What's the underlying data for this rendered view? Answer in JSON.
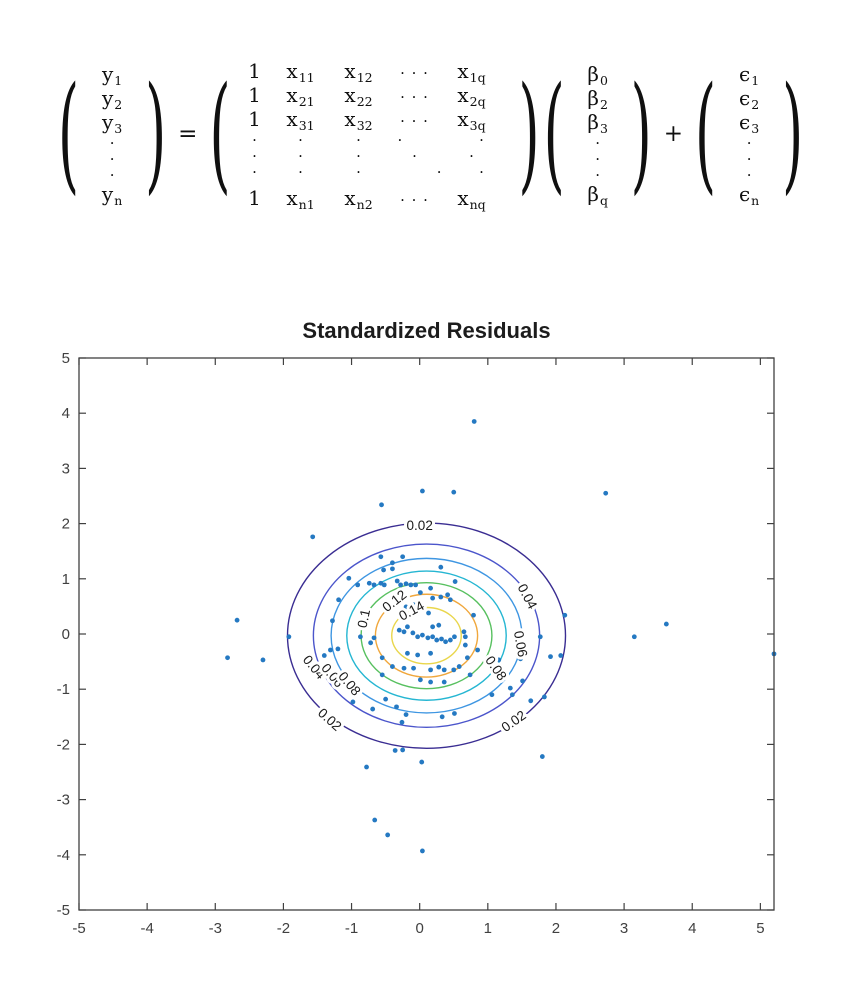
{
  "page": {
    "background": "#ffffff"
  },
  "equation": {
    "equals": "=",
    "plus": "+",
    "vectors": {
      "y": {
        "rows": [
          {
            "b": "y",
            "s": "1"
          },
          {
            "b": "y",
            "s": "2"
          },
          {
            "b": "y",
            "s": "3"
          },
          {
            "dots": true
          },
          {
            "dots": true
          },
          {
            "dots": true
          },
          {
            "b": "y",
            "s": "n"
          }
        ]
      },
      "beta": {
        "rows": [
          {
            "b": "β",
            "s": "0"
          },
          {
            "b": "β",
            "s": "2"
          },
          {
            "b": "β",
            "s": "3"
          },
          {
            "dots": true
          },
          {
            "dots": true
          },
          {
            "dots": true
          },
          {
            "b": "β",
            "s": "q"
          }
        ]
      },
      "epsilon": {
        "rows": [
          {
            "b": "ϵ",
            "s": "1"
          },
          {
            "b": "ϵ",
            "s": "2"
          },
          {
            "b": "ϵ",
            "s": "3"
          },
          {
            "dots": true
          },
          {
            "dots": true
          },
          {
            "dots": true
          },
          {
            "b": "ϵ",
            "s": "n"
          }
        ]
      }
    },
    "matrix": {
      "rows": [
        {
          "cells": [
            {
              "t": "1"
            },
            {
              "b": "x",
              "s": "11"
            },
            {
              "b": "x",
              "s": "12"
            },
            {
              "t": "· · ·"
            },
            {
              "b": "x",
              "s": "1q"
            }
          ]
        },
        {
          "cells": [
            {
              "t": "1"
            },
            {
              "b": "x",
              "s": "21"
            },
            {
              "b": "x",
              "s": "22"
            },
            {
              "t": "· · ·"
            },
            {
              "b": "x",
              "s": "2q"
            }
          ]
        },
        {
          "cells": [
            {
              "t": "1"
            },
            {
              "b": "x",
              "s": "31"
            },
            {
              "b": "x",
              "s": "32"
            },
            {
              "t": "· · ·"
            },
            {
              "b": "x",
              "s": "3q"
            }
          ]
        },
        {
          "dots": true,
          "cells": [
            {
              "t": "·"
            },
            {
              "t": "·"
            },
            {
              "t": "·"
            },
            {
              "t": "·",
              "shift": "l"
            },
            {
              "t": "·"
            }
          ]
        },
        {
          "dots": true,
          "cells": [
            {
              "t": "·"
            },
            {
              "t": "·"
            },
            {
              "t": "·"
            },
            {
              "t": "·",
              "shift": "c"
            },
            {
              "t": "·"
            }
          ]
        },
        {
          "dots": true,
          "cells": [
            {
              "t": "·"
            },
            {
              "t": "·"
            },
            {
              "t": "·"
            },
            {
              "t": "·",
              "shift": "r"
            },
            {
              "t": "·"
            }
          ]
        },
        {
          "last": true,
          "cells": [
            {
              "t": "1"
            },
            {
              "b": "x",
              "s": "n1"
            },
            {
              "b": "x",
              "s": "n2"
            },
            {
              "t": "· · ·"
            },
            {
              "b": "x",
              "s": "nq"
            }
          ]
        }
      ]
    }
  },
  "chart_data": {
    "type": "scatter",
    "title": "Standardized Residuals",
    "xlabel": "",
    "ylabel": "",
    "xlim": [
      -5,
      5.2
    ],
    "ylim": [
      -5,
      5
    ],
    "xticks": [
      -5,
      -4,
      -3,
      -2,
      -1,
      0,
      1,
      2,
      3,
      4,
      5
    ],
    "yticks": [
      -5,
      -4,
      -3,
      -2,
      -1,
      0,
      1,
      2,
      3,
      4,
      5
    ],
    "grid": false,
    "legend": null,
    "point_color": "#2579c2",
    "axis_color": "#404040",
    "contours": {
      "center": [
        0.1,
        -0.03
      ],
      "levels": [
        {
          "value": 0.02,
          "radius": 2.04,
          "color": "#3a2d92"
        },
        {
          "value": 0.04,
          "radius": 1.66,
          "color": "#4b55cb"
        },
        {
          "value": 0.06,
          "radius": 1.4,
          "color": "#3e96e2"
        },
        {
          "value": 0.08,
          "radius": 1.17,
          "color": "#25b6d2"
        },
        {
          "value": 0.1,
          "radius": 0.96,
          "color": "#57c05f"
        },
        {
          "value": 0.12,
          "radius": 0.75,
          "color": "#f0a73c"
        },
        {
          "value": 0.14,
          "radius": 0.51,
          "color": "#e9d64b"
        }
      ],
      "labels": [
        {
          "text": "0.02",
          "x": 0.0,
          "y": 1.97,
          "rot": 0
        },
        {
          "text": "0.04",
          "x": 1.58,
          "y": 0.68,
          "rot": 62
        },
        {
          "text": "0.06",
          "x": 1.48,
          "y": -0.18,
          "rot": 80
        },
        {
          "text": "0.08",
          "x": 1.12,
          "y": -0.62,
          "rot": 55
        },
        {
          "text": "0.02",
          "x": 1.38,
          "y": -1.58,
          "rot": -35
        },
        {
          "text": "0.02",
          "x": -1.32,
          "y": -1.55,
          "rot": 42
        },
        {
          "text": "0.04",
          "x": -1.55,
          "y": -0.6,
          "rot": 50
        },
        {
          "text": "0.06",
          "x": -1.28,
          "y": -0.75,
          "rot": 50
        },
        {
          "text": "0.08",
          "x": -1.03,
          "y": -0.9,
          "rot": 50
        },
        {
          "text": "0.1",
          "x": -0.82,
          "y": 0.28,
          "rot": -78
        },
        {
          "text": "0.12",
          "x": -0.37,
          "y": 0.6,
          "rot": -38
        },
        {
          "text": "0.14",
          "x": -0.12,
          "y": 0.42,
          "rot": -28
        }
      ]
    },
    "points": [
      [
        0.8,
        3.85
      ],
      [
        0.5,
        2.57
      ],
      [
        0.04,
        2.59
      ],
      [
        -0.56,
        2.34
      ],
      [
        2.73,
        2.55
      ],
      [
        -1.57,
        1.76
      ],
      [
        -2.68,
        0.25
      ],
      [
        -2.82,
        -0.43
      ],
      [
        -2.3,
        -0.47
      ],
      [
        3.15,
        -0.05
      ],
      [
        3.62,
        0.18
      ],
      [
        5.2,
        -0.36
      ],
      [
        2.13,
        0.34
      ],
      [
        1.8,
        -2.22
      ],
      [
        -0.78,
        -2.41
      ],
      [
        -0.66,
        -3.37
      ],
      [
        -0.47,
        -3.64
      ],
      [
        0.04,
        -3.93
      ],
      [
        0.03,
        -2.32
      ],
      [
        -0.36,
        -2.11
      ],
      [
        -0.25,
        -2.1
      ],
      [
        -0.2,
        -1.46
      ],
      [
        0.33,
        -1.5
      ],
      [
        -0.5,
        -1.18
      ],
      [
        -1.92,
        -0.05
      ],
      [
        -1.28,
        0.24
      ],
      [
        -1.4,
        -0.39
      ],
      [
        -1.31,
        -0.29
      ],
      [
        -1.2,
        -0.27
      ],
      [
        -1.32,
        -0.72
      ],
      [
        -0.98,
        -1.23
      ],
      [
        -0.69,
        -1.36
      ],
      [
        -0.34,
        -1.32
      ],
      [
        -0.26,
        -1.6
      ],
      [
        0.51,
        -1.44
      ],
      [
        1.06,
        -1.1
      ],
      [
        1.36,
        -1.1
      ],
      [
        1.63,
        -1.21
      ],
      [
        1.83,
        -1.14
      ],
      [
        1.33,
        -0.98
      ],
      [
        1.51,
        -0.85
      ],
      [
        1.48,
        -0.45
      ],
      [
        1.45,
        -0.41
      ],
      [
        1.92,
        -0.41
      ],
      [
        2.07,
        -0.39
      ],
      [
        1.77,
        -0.05
      ],
      [
        -1.19,
        0.62
      ],
      [
        -1.04,
        1.01
      ],
      [
        -0.91,
        0.89
      ],
      [
        -0.74,
        0.92
      ],
      [
        -0.67,
        0.89
      ],
      [
        -0.57,
        0.92
      ],
      [
        -0.52,
        0.89
      ],
      [
        -0.4,
        1.29
      ],
      [
        -0.57,
        1.4
      ],
      [
        -0.25,
        1.4
      ],
      [
        -0.4,
        1.18
      ],
      [
        -0.53,
        1.16
      ],
      [
        -0.33,
        0.96
      ],
      [
        -0.28,
        0.89
      ],
      [
        -0.2,
        0.91
      ],
      [
        -0.13,
        0.89
      ],
      [
        -0.06,
        0.89
      ],
      [
        0.01,
        0.75
      ],
      [
        0.16,
        0.83
      ],
      [
        0.31,
        1.21
      ],
      [
        0.19,
        0.65
      ],
      [
        0.31,
        0.67
      ],
      [
        0.41,
        0.71
      ],
      [
        0.45,
        0.62
      ],
      [
        0.52,
        0.95
      ],
      [
        -0.09,
        0.53
      ],
      [
        -0.2,
        0.49
      ],
      [
        -0.03,
        0.38
      ],
      [
        0.13,
        0.38
      ],
      [
        0.79,
        0.34
      ],
      [
        0.65,
        0.04
      ],
      [
        0.19,
        0.13
      ],
      [
        0.28,
        0.16
      ],
      [
        -0.18,
        0.13
      ],
      [
        -0.3,
        0.07
      ],
      [
        -0.23,
        0.04
      ],
      [
        -0.1,
        0.02
      ],
      [
        -0.03,
        -0.05
      ],
      [
        0.04,
        -0.02
      ],
      [
        0.12,
        -0.07
      ],
      [
        0.19,
        -0.05
      ],
      [
        0.25,
        -0.11
      ],
      [
        0.32,
        -0.09
      ],
      [
        0.38,
        -0.14
      ],
      [
        0.45,
        -0.11
      ],
      [
        0.51,
        -0.05
      ],
      [
        0.67,
        -0.05
      ],
      [
        0.67,
        -0.2
      ],
      [
        -0.67,
        -0.07
      ],
      [
        -0.72,
        -0.16
      ],
      [
        -0.87,
        -0.05
      ],
      [
        0.85,
        -0.29
      ],
      [
        1.0,
        -0.5
      ],
      [
        1.16,
        -0.47
      ],
      [
        -0.55,
        -0.43
      ],
      [
        -0.4,
        -0.59
      ],
      [
        -0.23,
        -0.62
      ],
      [
        -0.09,
        -0.62
      ],
      [
        0.16,
        -0.65
      ],
      [
        0.28,
        -0.6
      ],
      [
        0.36,
        -0.65
      ],
      [
        0.5,
        -0.65
      ],
      [
        0.58,
        -0.59
      ],
      [
        0.7,
        -0.43
      ],
      [
        -0.18,
        -0.35
      ],
      [
        -0.03,
        -0.38
      ],
      [
        0.16,
        -0.35
      ],
      [
        -0.55,
        -0.74
      ],
      [
        0.01,
        -0.83
      ],
      [
        0.16,
        -0.87
      ],
      [
        0.36,
        -0.87
      ],
      [
        0.74,
        -0.74
      ]
    ]
  }
}
